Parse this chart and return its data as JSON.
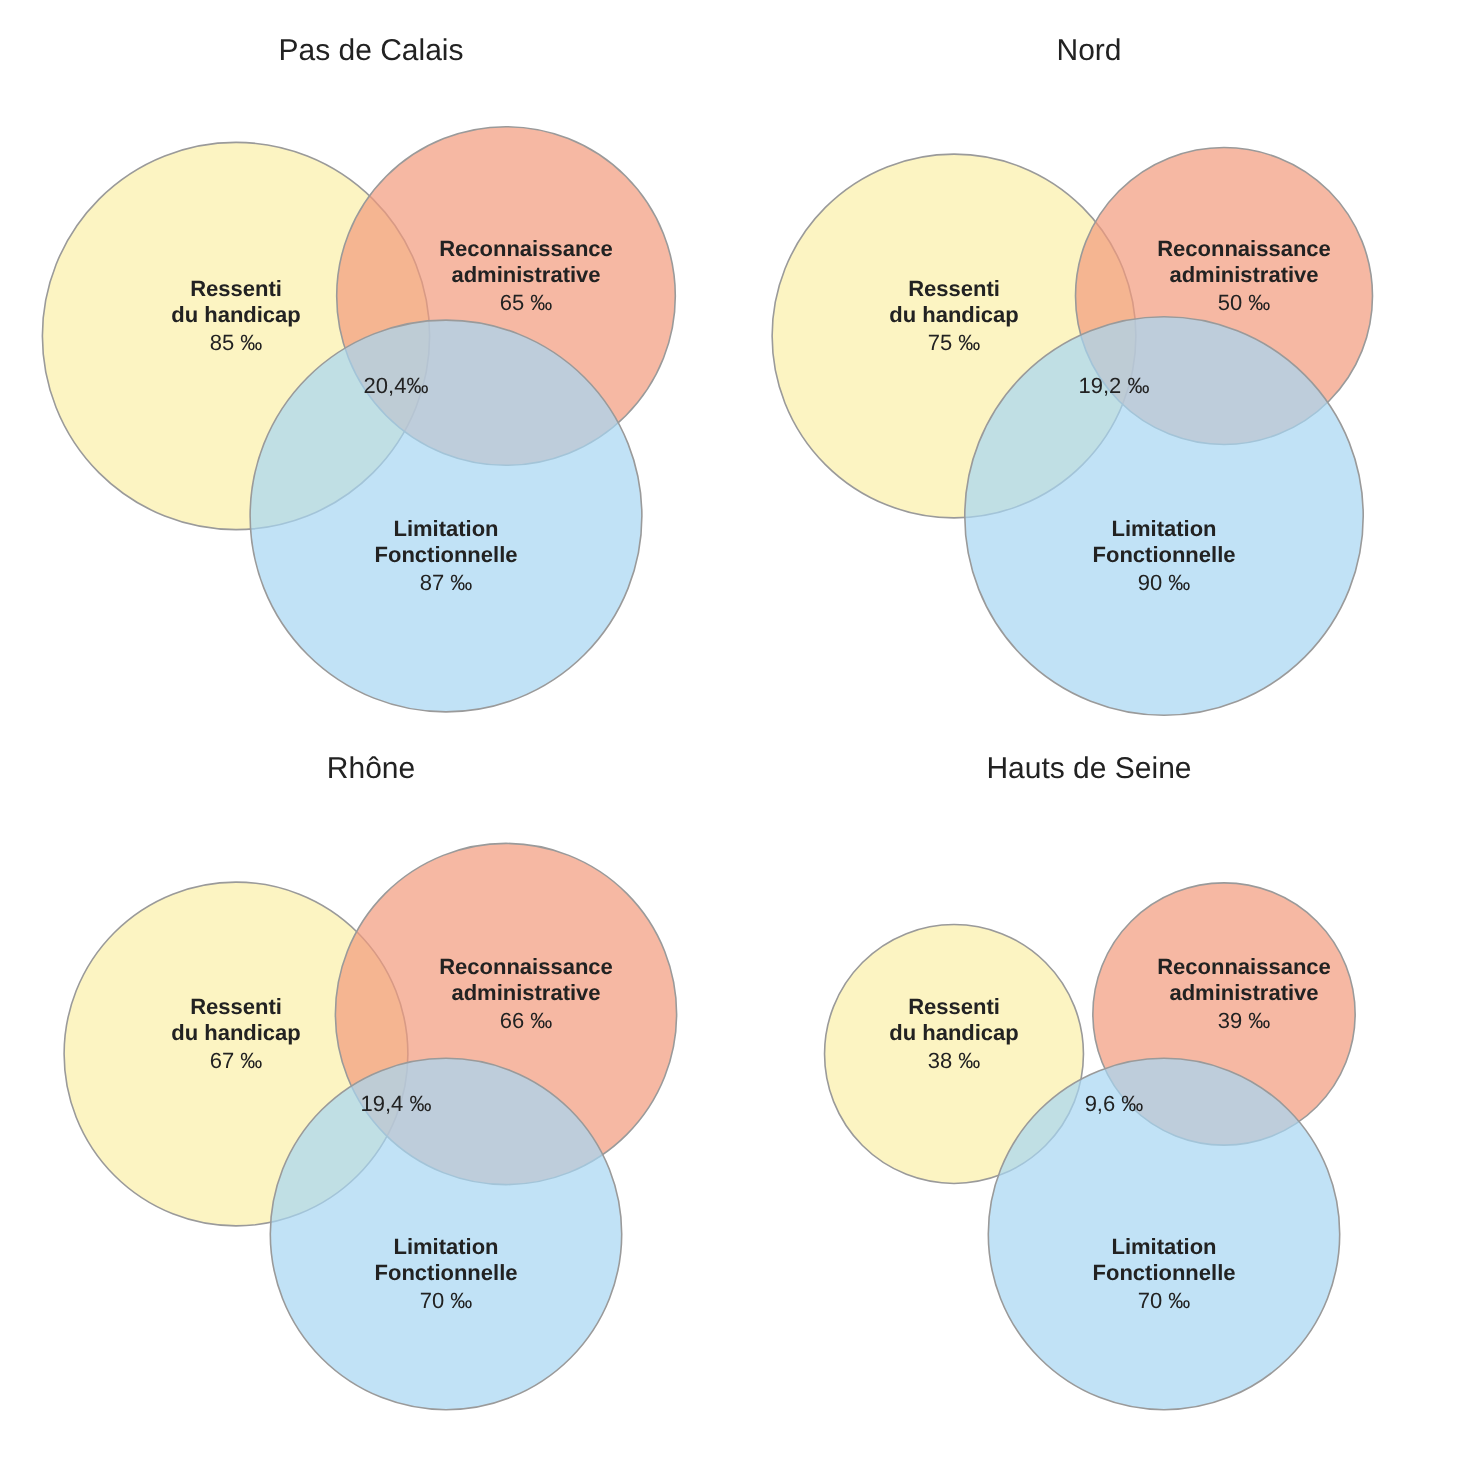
{
  "chart_data": [
    {
      "type": "other",
      "title": "Pas de Calais",
      "categories": [
        "Ressenti du handicap",
        "Reconnaissance administrative",
        "Limitation Fonctionnelle"
      ],
      "values": [
        85,
        65,
        87
      ],
      "value_labels": [
        "85 ‰",
        "65 ‰",
        "87 ‰"
      ],
      "colors": [
        "#fbf0a8",
        "#f29a7c",
        "#a6d6f2"
      ],
      "annotations": [
        "20,4‰"
      ]
    },
    {
      "type": "other",
      "title": "Nord",
      "categories": [
        "Ressenti du handicap",
        "Reconnaissance administrative",
        "Limitation Fonctionnelle"
      ],
      "values": [
        75,
        50,
        90
      ],
      "value_labels": [
        "75 ‰",
        "50 ‰",
        "90 ‰"
      ],
      "colors": [
        "#fbf0a8",
        "#f29a7c",
        "#a6d6f2"
      ],
      "annotations": [
        "19,2 ‰"
      ]
    },
    {
      "type": "other",
      "title": "Rhône",
      "categories": [
        "Ressenti du handicap",
        "Reconnaissance administrative",
        "Limitation Fonctionnelle"
      ],
      "values": [
        67,
        66,
        70
      ],
      "value_labels": [
        "67 ‰",
        "66 ‰",
        "70 ‰"
      ],
      "colors": [
        "#fbf0a8",
        "#f29a7c",
        "#a6d6f2"
      ],
      "annotations": [
        "19,4 ‰"
      ]
    },
    {
      "type": "other",
      "title": "Hauts de Seine",
      "categories": [
        "Ressenti du handicap",
        "Reconnaissance administrative",
        "Limitation Fonctionnelle"
      ],
      "values": [
        38,
        39,
        70
      ],
      "value_labels": [
        "38 ‰",
        "39 ‰",
        "70 ‰"
      ],
      "colors": [
        "#fbf0a8",
        "#f29a7c",
        "#a6d6f2"
      ],
      "annotations": [
        "9,6 ‰"
      ]
    }
  ]
}
